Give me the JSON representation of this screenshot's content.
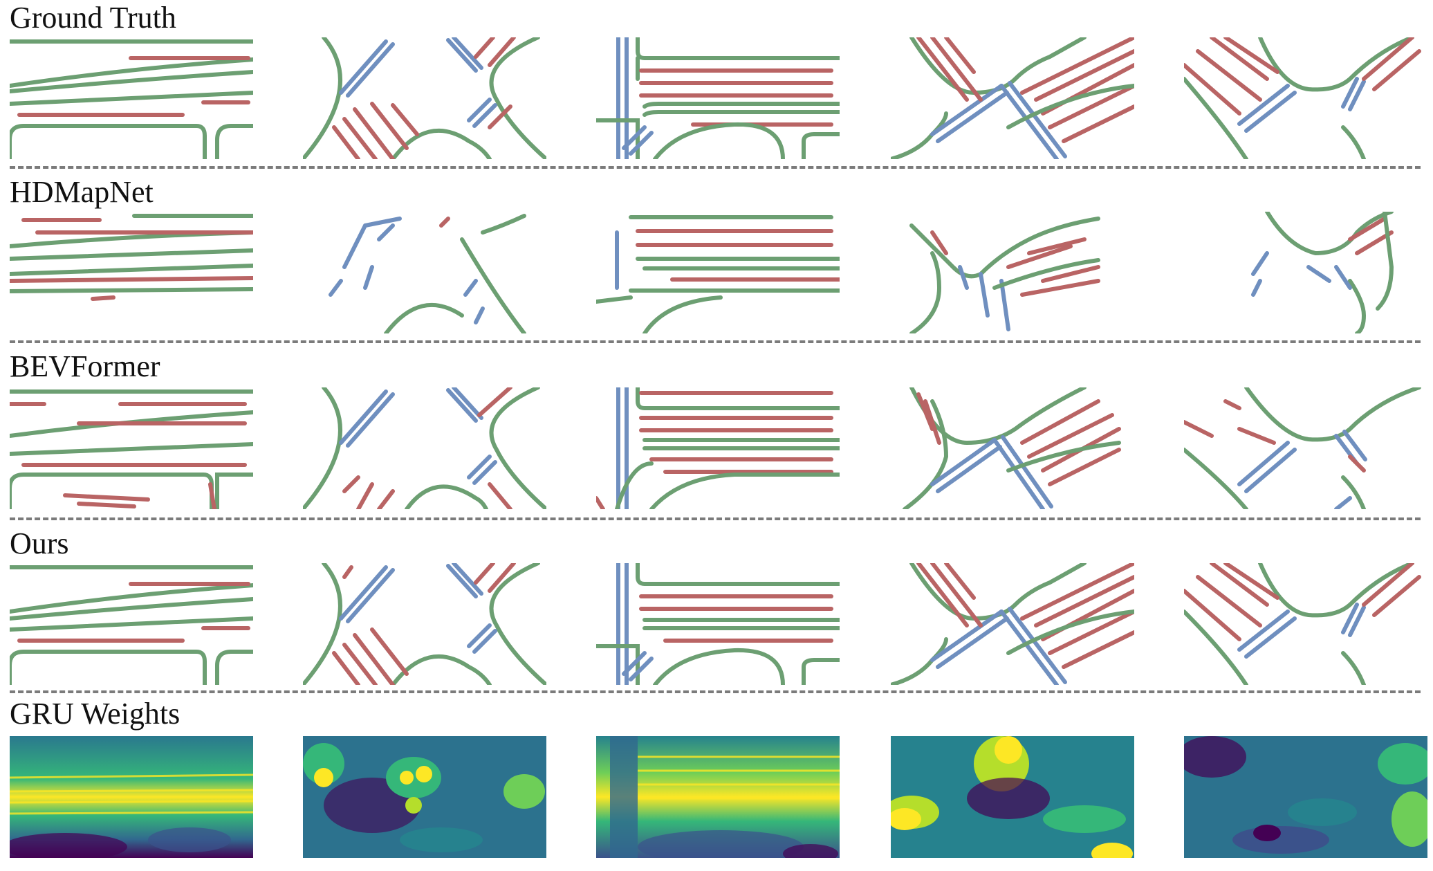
{
  "figure": {
    "rows": [
      {
        "id": "ground-truth",
        "title": "Ground Truth"
      },
      {
        "id": "hdmapnet",
        "title": "HDMapNet"
      },
      {
        "id": "bevformer",
        "title": "BEVFormer"
      },
      {
        "id": "ours",
        "title": "Ours"
      },
      {
        "id": "gru-weights",
        "title": "GRU Weights"
      }
    ],
    "legend_colors": {
      "boundary": "#6c9f72",
      "divider": "#b96464",
      "ped_crossing": "#6f8fbf"
    },
    "heatmap_colormap": [
      "#440154",
      "#31688e",
      "#35b779",
      "#fde725"
    ]
  }
}
